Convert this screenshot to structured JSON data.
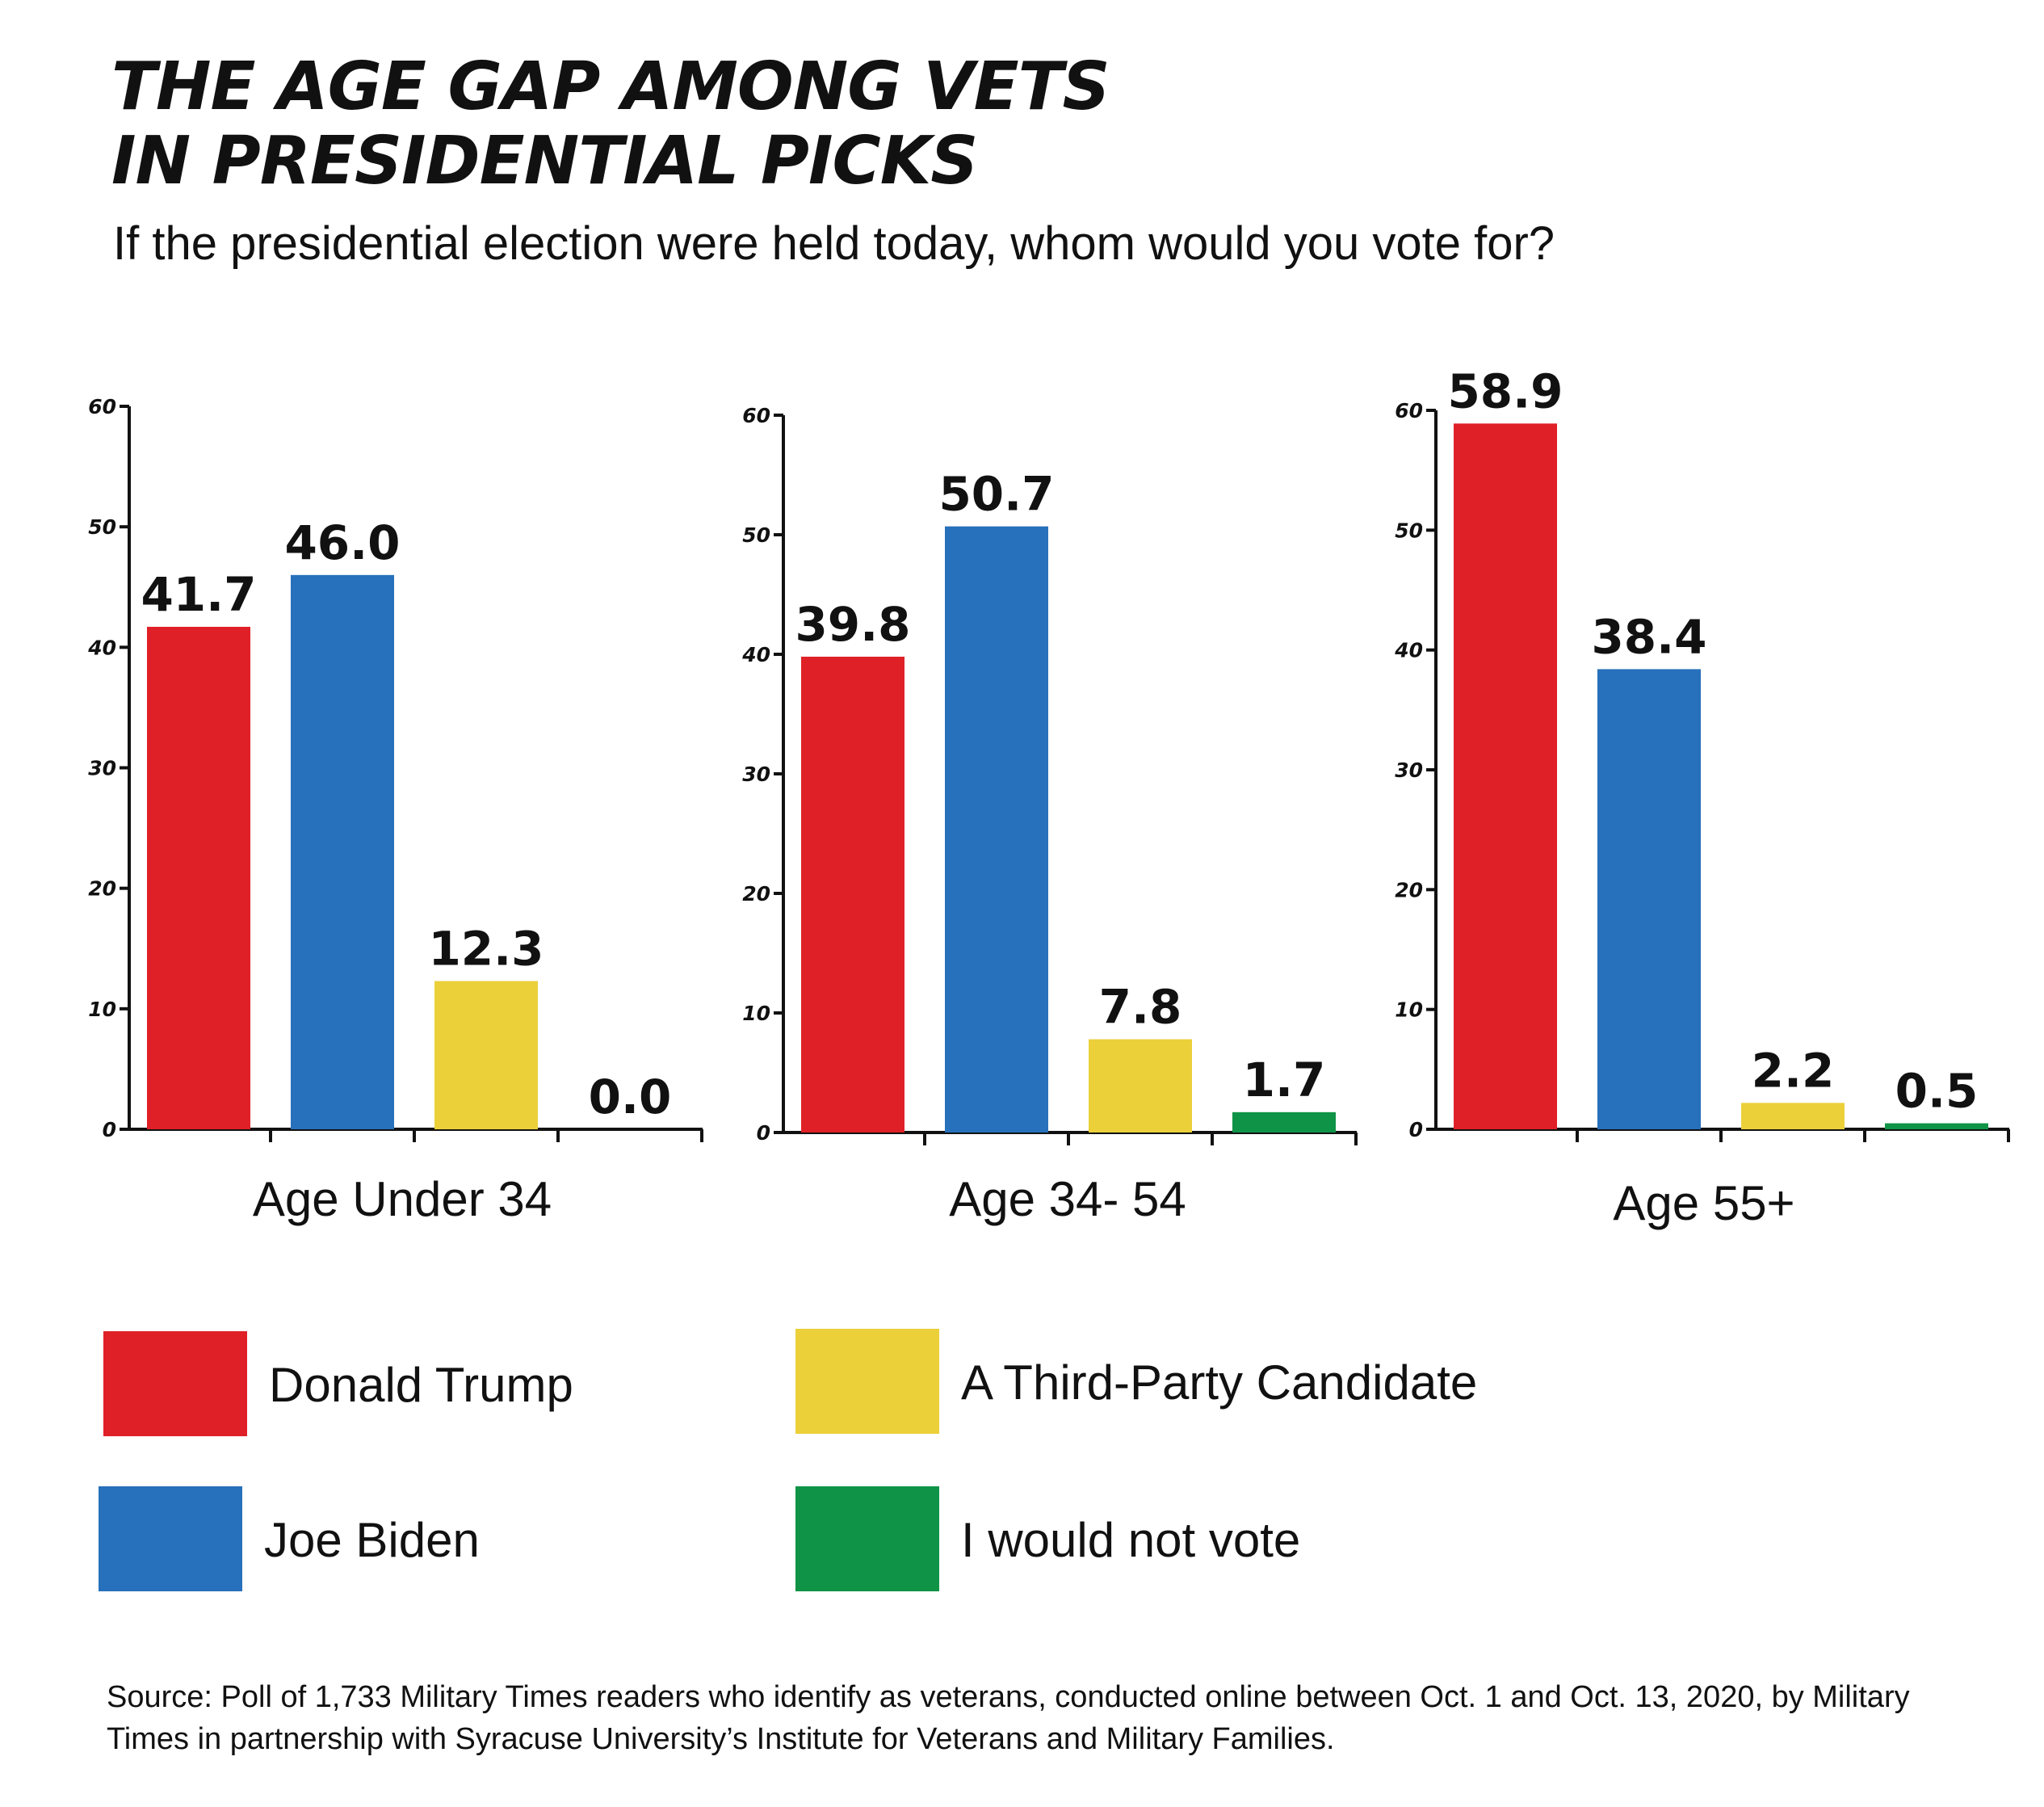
{
  "title": {
    "line1": "THE AGE GAP AMONG VETS",
    "line2": "IN PRESIDENTIAL PICKS"
  },
  "subtitle": "If the presidential election were held today, whom would you vote for?",
  "legend": [
    {
      "label": "Donald Trump",
      "color": "#e02027"
    },
    {
      "label": "Joe Biden",
      "color": "#2770bb"
    },
    {
      "label": "A Third-Party Candidate",
      "color": "#ebd03a"
    },
    {
      "label": "I would not vote",
      "color": "#0f9346"
    }
  ],
  "source": "Source: Poll of 1,733 Military Times readers who identify as veterans, conducted online between Oct. 1 and Oct. 13, 2020, by Military Times in partnership with Syracuse University’s Institute for Veterans and Military Families.",
  "chart_data": [
    {
      "type": "bar",
      "xlabel": "Age Under 34",
      "categories": [
        "Donald Trump",
        "Joe Biden",
        "A Third-Party Candidate",
        "I would not vote"
      ],
      "values": [
        41.7,
        46.0,
        12.3,
        0.0
      ],
      "value_labels": [
        "41.7",
        "46.0",
        "12.3",
        "0.0"
      ],
      "ylim": [
        0,
        60
      ],
      "yticks": [
        "0",
        "10",
        "20",
        "30",
        "40",
        "50",
        "60"
      ],
      "colors": [
        "#e02027",
        "#2770bb",
        "#ebd03a",
        "#0f9346"
      ]
    },
    {
      "type": "bar",
      "xlabel": "Age 34- 54",
      "categories": [
        "Donald Trump",
        "Joe Biden",
        "A Third-Party Candidate",
        "I would not vote"
      ],
      "values": [
        39.8,
        50.7,
        7.8,
        1.7
      ],
      "value_labels": [
        "39.8",
        "50.7",
        "7.8",
        "1.7"
      ],
      "ylim": [
        0,
        60
      ],
      "yticks": [
        "0",
        "10",
        "20",
        "30",
        "40",
        "50",
        "60"
      ],
      "colors": [
        "#e02027",
        "#2770bb",
        "#ebd03a",
        "#0f9346"
      ]
    },
    {
      "type": "bar",
      "xlabel": "Age 55+",
      "categories": [
        "Donald Trump",
        "Joe Biden",
        "A Third-Party Candidate",
        "I would not vote"
      ],
      "values": [
        58.9,
        38.4,
        2.2,
        0.5
      ],
      "value_labels": [
        "58.9",
        "38.4",
        "2.2",
        "0.5"
      ],
      "ylim": [
        0,
        60
      ],
      "yticks": [
        "0",
        "10",
        "20",
        "30",
        "40",
        "50",
        "60"
      ],
      "colors": [
        "#e02027",
        "#2770bb",
        "#ebd03a",
        "#0f9346"
      ]
    }
  ]
}
